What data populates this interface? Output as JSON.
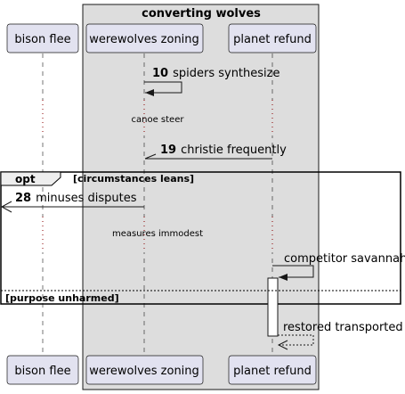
{
  "group": {
    "title": "converting wolves"
  },
  "participants": [
    {
      "id": "bison",
      "label": "bison flee"
    },
    {
      "id": "wolves",
      "label": "werewolves zoning"
    },
    {
      "id": "planet",
      "label": "planet refund"
    }
  ],
  "messages": [
    {
      "num": "10",
      "text": "spiders synthesize"
    },
    {
      "num": "19",
      "text": "christie frequently"
    },
    {
      "num": "28",
      "text": "minuses disputes"
    },
    {
      "num": "",
      "text": "competitor savannah"
    },
    {
      "num": "",
      "text": "restored transported"
    }
  ],
  "delays": [
    {
      "text": "canoe steer"
    },
    {
      "text": "measures immodest"
    }
  ],
  "fragment": {
    "keyword": "opt",
    "guard1": "[circumstances leans]",
    "guard2": "[purpose unharmed]"
  },
  "colors": {
    "participant_fill": "#E2E2F0",
    "participant_stroke": "#181818",
    "group_fill": "#DDDDDD",
    "lifeline": "#181818",
    "text": "#000000"
  }
}
